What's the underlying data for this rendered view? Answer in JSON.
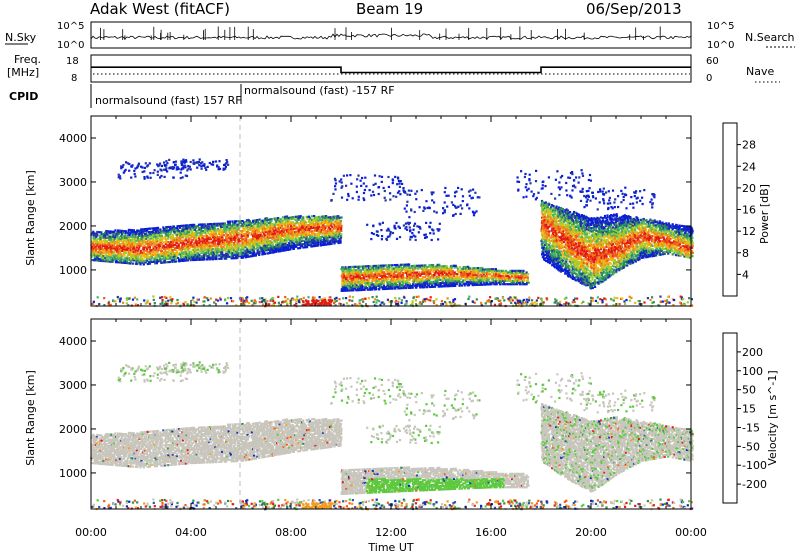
{
  "header": {
    "station": "Adak West (fitACF)",
    "beam": "Beam 19",
    "date": "06/Sep/2013"
  },
  "top_panels": {
    "nsky_label": "N.Sky",
    "nsky_ticks": [
      "10^5",
      "10^0"
    ],
    "nsearch_label": "N.Search",
    "nsearch_ticks": [
      "10^5",
      "10^0"
    ],
    "freq_label": "Freq.",
    "freq_unit": "[MHz]",
    "freq_ticks": [
      "18",
      "8"
    ],
    "nave_label": "Nave",
    "nave_ticks": [
      "60",
      "0"
    ],
    "cpid_label": "CPID",
    "cpid_segments": [
      {
        "label": "normalsound (fast) 157 RF",
        "start_hour": 0,
        "end_hour": 6.0
      },
      {
        "label": "normalsound (fast) -157 RF",
        "start_hour": 6.0,
        "end_hour": 24
      }
    ]
  },
  "colors": {
    "power": [
      "#0b1fd6",
      "#2438a6",
      "#2e8a57",
      "#49b36a",
      "#9ccf2f",
      "#f0b90f",
      "#f08a1c",
      "#ee5a1c",
      "#e21b12"
    ],
    "velocity": [
      "#e41a1c",
      "#f45b14",
      "#f79b1c",
      "#c8c6bc",
      "#c8c6bc",
      "#5ec93f",
      "#2f8a4c",
      "#2a55a8",
      "#0a2bb8"
    ],
    "ground": "#c8c6bc"
  },
  "chart_data": [
    {
      "type": "line",
      "name": "freq",
      "x": [
        0,
        10.0,
        10.0,
        18.0,
        18.0,
        24
      ],
      "y": [
        13.5,
        13.5,
        11.5,
        11.5,
        13.5,
        13.5
      ],
      "ylim": [
        8,
        18
      ],
      "xlim": [
        0,
        24
      ]
    },
    {
      "type": "heatmap",
      "name": "power",
      "title": "Power",
      "ylabel": "Slant Range [km]",
      "xlabel": "Time UT",
      "xlim": [
        0,
        24
      ],
      "ylim": [
        180,
        4500
      ],
      "x_ticks": [
        "00:00",
        "04:00",
        "08:00",
        "12:00",
        "16:00",
        "20:00",
        "00:00"
      ],
      "y_ticks": [
        1000,
        2000,
        3000,
        4000
      ],
      "colorbar_label": "Power [dB]",
      "colorbar_ticks": [
        4,
        8,
        12,
        16,
        20,
        24,
        28
      ],
      "bands": [
        {
          "x": [
            0,
            2,
            4,
            6,
            8,
            10
          ],
          "lo": [
            1250,
            1150,
            1250,
            1300,
            1500,
            1650
          ],
          "hi": [
            1900,
            1950,
            2050,
            2150,
            2250,
            2250
          ],
          "core": [
            1550,
            1500,
            1650,
            1750,
            1950,
            2000
          ]
        },
        {
          "x": [
            10,
            12,
            14,
            16,
            17.5
          ],
          "lo": [
            550,
            600,
            650,
            700,
            700
          ],
          "hi": [
            1100,
            1150,
            1150,
            1050,
            1000
          ],
          "core": [
            850,
            900,
            950,
            900,
            850
          ]
        },
        {
          "x": [
            18,
            19,
            20,
            21,
            22,
            23,
            24
          ],
          "lo": [
            1300,
            900,
            600,
            1000,
            1300,
            1400,
            1300
          ],
          "hi": [
            2600,
            2400,
            2200,
            2300,
            2200,
            2100,
            2000
          ],
          "core": [
            2100,
            1700,
            1300,
            1500,
            1800,
            1700,
            1500
          ]
        }
      ]
    },
    {
      "type": "heatmap",
      "name": "velocity",
      "title": "Velocity",
      "ylabel": "Slant Range [km]",
      "xlabel": "Time UT",
      "xlim": [
        0,
        24
      ],
      "ylim": [
        180,
        4500
      ],
      "x_ticks": [
        "00:00",
        "04:00",
        "08:00",
        "12:00",
        "16:00",
        "20:00",
        "00:00"
      ],
      "y_ticks": [
        1000,
        2000,
        3000,
        4000
      ],
      "colorbar_label": "Velocity [m s^-1]",
      "colorbar_ticks": [
        200,
        100,
        50,
        15,
        -15,
        -50,
        -100,
        -200
      ]
    }
  ]
}
